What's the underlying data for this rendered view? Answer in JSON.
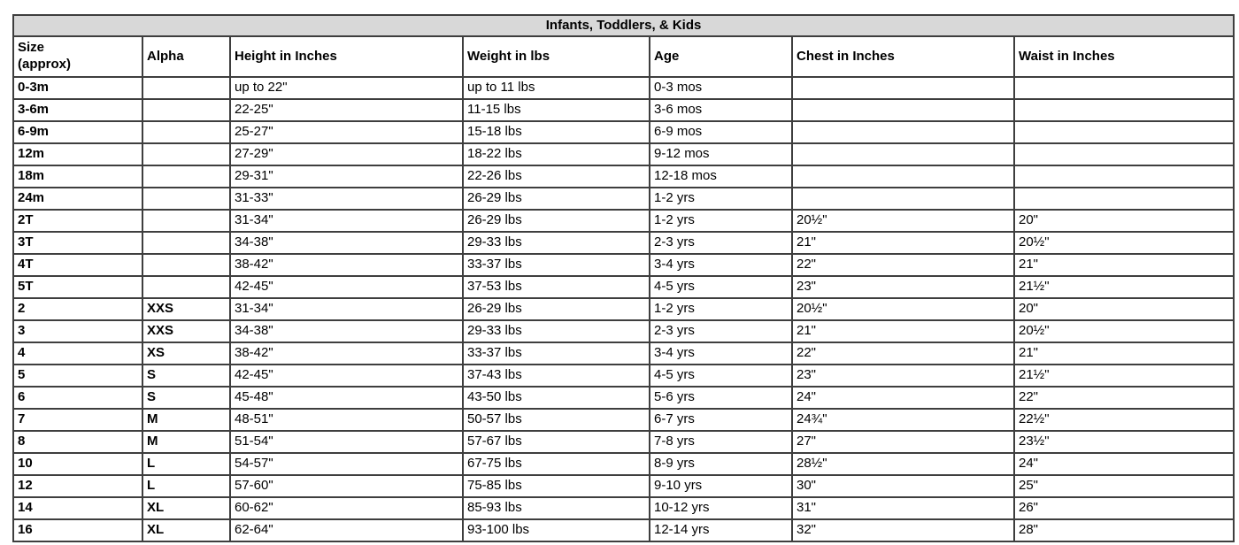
{
  "table": {
    "title": "Infants, Toddlers, & Kids",
    "columns": [
      "Size\n(approx)",
      "Alpha",
      "Height in Inches",
      "Weight in lbs",
      "Age",
      "Chest in Inches",
      "Waist in Inches"
    ],
    "column_keys": [
      "size",
      "alpha",
      "height",
      "weight",
      "age",
      "chest",
      "waist"
    ],
    "rows": [
      [
        "0-3m",
        "",
        "up to 22\"",
        "up to 11 lbs",
        "0-3 mos",
        "",
        ""
      ],
      [
        "3-6m",
        "",
        "22-25\"",
        "11-15 lbs",
        "3-6 mos",
        "",
        ""
      ],
      [
        "6-9m",
        "",
        "25-27\"",
        "15-18 lbs",
        "6-9 mos",
        "",
        ""
      ],
      [
        "12m",
        "",
        "27-29\"",
        "18-22 lbs",
        "9-12 mos",
        "",
        ""
      ],
      [
        "18m",
        "",
        "29-31\"",
        "22-26 lbs",
        "12-18 mos",
        "",
        ""
      ],
      [
        "24m",
        "",
        "31-33\"",
        "26-29 lbs",
        "1-2 yrs",
        "",
        ""
      ],
      [
        "2T",
        "",
        "31-34\"",
        "26-29 lbs",
        "1-2 yrs",
        "20½\"",
        "20\""
      ],
      [
        "3T",
        "",
        "34-38\"",
        "29-33 lbs",
        "2-3 yrs",
        "21\"",
        "20½\""
      ],
      [
        "4T",
        "",
        "38-42\"",
        "33-37 lbs",
        "3-4 yrs",
        "22\"",
        "21\""
      ],
      [
        "5T",
        "",
        "42-45\"",
        "37-53 lbs",
        "4-5 yrs",
        "23\"",
        "21½\""
      ],
      [
        "2",
        "XXS",
        "31-34\"",
        "26-29 lbs",
        "1-2 yrs",
        "20½\"",
        "20\""
      ],
      [
        "3",
        "XXS",
        "34-38\"",
        "29-33 lbs",
        "2-3 yrs",
        "21\"",
        "20½\""
      ],
      [
        "4",
        "XS",
        "38-42\"",
        "33-37 lbs",
        "3-4 yrs",
        "22\"",
        "21\""
      ],
      [
        "5",
        "S",
        "42-45\"",
        "37-43 lbs",
        "4-5 yrs",
        "23\"",
        "21½\""
      ],
      [
        "6",
        "S",
        "45-48\"",
        "43-50 lbs",
        "5-6 yrs",
        "24\"",
        "22\""
      ],
      [
        "7",
        "M",
        "48-51\"",
        "50-57 lbs",
        "6-7 yrs",
        "24¾\"",
        "22½\""
      ],
      [
        "8",
        "M",
        "51-54\"",
        "57-67 lbs",
        "7-8 yrs",
        "27\"",
        "23½\""
      ],
      [
        "10",
        "L",
        "54-57\"",
        "67-75 lbs",
        "8-9 yrs",
        "28½\"",
        "24\""
      ],
      [
        "12",
        "L",
        "57-60\"",
        "75-85 lbs",
        "9-10 yrs",
        "30\"",
        "25\""
      ],
      [
        "14",
        "XL",
        "60-62\"",
        "85-93 lbs",
        "10-12 yrs",
        "31\"",
        "26\""
      ],
      [
        "16",
        "XL",
        "62-64\"",
        "93-100 lbs",
        "12-14 yrs",
        "32\"",
        "28\""
      ]
    ]
  },
  "colors": {
    "title_background": "#d8d8d8",
    "border": "#3e3e3e",
    "text": "#000000",
    "page_background": "#ffffff"
  }
}
